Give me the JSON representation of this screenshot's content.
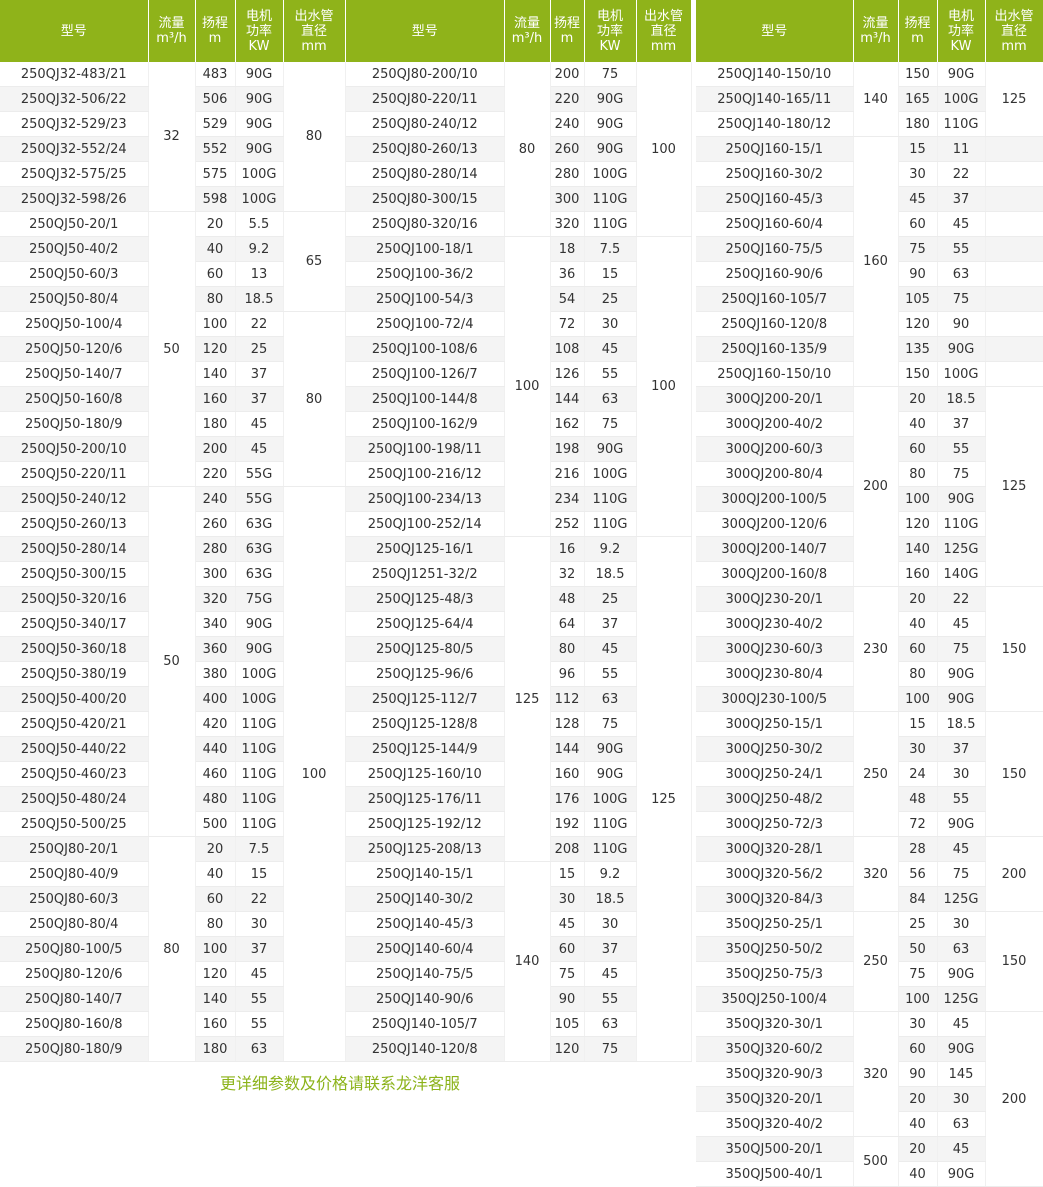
{
  "headers": [
    "型号",
    "流量\nm³/h",
    "扬程\nm",
    "电机\n功率\nKW",
    "出水管\n直径\nmm"
  ],
  "colors": {
    "header_bg": "#8fb31a",
    "header_text": "#ffffff",
    "footer_text": "#8cb31a",
    "stripe": "#f4f4f4"
  },
  "tables": [
    {
      "rows": [
        [
          "250QJ32-483/21",
          "483",
          "90G"
        ],
        [
          "250QJ32-506/22",
          "506",
          "90G"
        ],
        [
          "250QJ32-529/23",
          "529",
          "90G"
        ],
        [
          "250QJ32-552/24",
          "552",
          "90G"
        ],
        [
          "250QJ32-575/25",
          "575",
          "100G"
        ],
        [
          "250QJ32-598/26",
          "598",
          "100G"
        ],
        [
          "250QJ50-20/1",
          "20",
          "5.5"
        ],
        [
          "250QJ50-40/2",
          "40",
          "9.2"
        ],
        [
          "250QJ50-60/3",
          "60",
          "13"
        ],
        [
          "250QJ50-80/4",
          "80",
          "18.5"
        ],
        [
          "250QJ50-100/4",
          "100",
          "22"
        ],
        [
          "250QJ50-120/6",
          "120",
          "25"
        ],
        [
          "250QJ50-140/7",
          "140",
          "37"
        ],
        [
          "250QJ50-160/8",
          "160",
          "37"
        ],
        [
          "250QJ50-180/9",
          "180",
          "45"
        ],
        [
          "250QJ50-200/10",
          "200",
          "45"
        ],
        [
          "250QJ50-220/11",
          "220",
          "55G"
        ],
        [
          "250QJ50-240/12",
          "240",
          "55G"
        ],
        [
          "250QJ50-260/13",
          "260",
          "63G"
        ],
        [
          "250QJ50-280/14",
          "280",
          "63G"
        ],
        [
          "250QJ50-300/15",
          "300",
          "63G"
        ],
        [
          "250QJ50-320/16",
          "320",
          "75G"
        ],
        [
          "250QJ50-340/17",
          "340",
          "90G"
        ],
        [
          "250QJ50-360/18",
          "360",
          "90G"
        ],
        [
          "250QJ50-380/19",
          "380",
          "100G"
        ],
        [
          "250QJ50-400/20",
          "400",
          "100G"
        ],
        [
          "250QJ50-420/21",
          "420",
          "110G"
        ],
        [
          "250QJ50-440/22",
          "440",
          "110G"
        ],
        [
          "250QJ50-460/23",
          "460",
          "110G"
        ],
        [
          "250QJ50-480/24",
          "480",
          "110G"
        ],
        [
          "250QJ50-500/25",
          "500",
          "110G"
        ],
        [
          "250QJ80-20/1",
          "20",
          "7.5"
        ],
        [
          "250QJ80-40/9",
          "40",
          "15"
        ],
        [
          "250QJ80-60/3",
          "60",
          "22"
        ],
        [
          "250QJ80-80/4",
          "80",
          "30"
        ],
        [
          "250QJ80-100/5",
          "100",
          "37"
        ],
        [
          "250QJ80-120/6",
          "120",
          "45"
        ],
        [
          "250QJ80-140/7",
          "140",
          "55"
        ],
        [
          "250QJ80-160/8",
          "160",
          "55"
        ],
        [
          "250QJ80-180/9",
          "180",
          "63"
        ]
      ],
      "flow": [
        {
          "value": "32",
          "span": 6
        },
        {
          "value": "50",
          "span": 11
        },
        {
          "value": "50",
          "span": 14
        },
        {
          "value": "80",
          "span": 9
        }
      ],
      "outlet": [
        {
          "value": "80",
          "span": 6
        },
        {
          "value": "65",
          "span": 4
        },
        {
          "value": "80",
          "span": 7
        },
        {
          "value": "100",
          "span": 23
        }
      ]
    },
    {
      "rows": [
        [
          "250QJ80-200/10",
          "200",
          "75"
        ],
        [
          "250QJ80-220/11",
          "220",
          "90G"
        ],
        [
          "250QJ80-240/12",
          "240",
          "90G"
        ],
        [
          "250QJ80-260/13",
          "260",
          "90G"
        ],
        [
          "250QJ80-280/14",
          "280",
          "100G"
        ],
        [
          "250QJ80-300/15",
          "300",
          "110G"
        ],
        [
          "250QJ80-320/16",
          "320",
          "110G"
        ],
        [
          "250QJ100-18/1",
          "18",
          "7.5"
        ],
        [
          "250QJ100-36/2",
          "36",
          "15"
        ],
        [
          "250QJ100-54/3",
          "54",
          "25"
        ],
        [
          "250QJ100-72/4",
          "72",
          "30"
        ],
        [
          "250QJ100-108/6",
          "108",
          "45"
        ],
        [
          "250QJ100-126/7",
          "126",
          "55"
        ],
        [
          "250QJ100-144/8",
          "144",
          "63"
        ],
        [
          "250QJ100-162/9",
          "162",
          "75"
        ],
        [
          "250QJ100-198/11",
          "198",
          "90G"
        ],
        [
          "250QJ100-216/12",
          "216",
          "100G"
        ],
        [
          "250QJ100-234/13",
          "234",
          "110G"
        ],
        [
          "250QJ100-252/14",
          "252",
          "110G"
        ],
        [
          "250QJ125-16/1",
          "16",
          "9.2"
        ],
        [
          "250QJ1251-32/2",
          "32",
          "18.5"
        ],
        [
          "250QJ125-48/3",
          "48",
          "25"
        ],
        [
          "250QJ125-64/4",
          "64",
          "37"
        ],
        [
          "250QJ125-80/5",
          "80",
          "45"
        ],
        [
          "250QJ125-96/6",
          "96",
          "55"
        ],
        [
          "250QJ125-112/7",
          "112",
          "63"
        ],
        [
          "250QJ125-128/8",
          "128",
          "75"
        ],
        [
          "250QJ125-144/9",
          "144",
          "90G"
        ],
        [
          "250QJ125-160/10",
          "160",
          "90G"
        ],
        [
          "250QJ125-176/11",
          "176",
          "100G"
        ],
        [
          "250QJ125-192/12",
          "192",
          "110G"
        ],
        [
          "250QJ125-208/13",
          "208",
          "110G"
        ],
        [
          "250QJ140-15/1",
          "15",
          "9.2"
        ],
        [
          "250QJ140-30/2",
          "30",
          "18.5"
        ],
        [
          "250QJ140-45/3",
          "45",
          "30"
        ],
        [
          "250QJ140-60/4",
          "60",
          "37"
        ],
        [
          "250QJ140-75/5",
          "75",
          "45"
        ],
        [
          "250QJ140-90/6",
          "90",
          "55"
        ],
        [
          "250QJ140-105/7",
          "105",
          "63"
        ],
        [
          "250QJ140-120/8",
          "120",
          "75"
        ]
      ],
      "flow": [
        {
          "value": "80",
          "span": 7
        },
        {
          "value": "100",
          "span": 12
        },
        {
          "value": "125",
          "span": 13
        },
        {
          "value": "140",
          "span": 8
        }
      ],
      "outlet": [
        {
          "value": "100",
          "span": 7
        },
        {
          "value": "100",
          "span": 12
        },
        {
          "value": "125",
          "span": 21
        }
      ]
    },
    {
      "rows": [
        [
          "250QJ140-150/10",
          "150",
          "90G"
        ],
        [
          "250QJ140-165/11",
          "165",
          "100G"
        ],
        [
          "250QJ140-180/12",
          "180",
          "110G"
        ],
        [
          "250QJ160-15/1",
          "15",
          "11"
        ],
        [
          "250QJ160-30/2",
          "30",
          "22"
        ],
        [
          "250QJ160-45/3",
          "45",
          "37"
        ],
        [
          "250QJ160-60/4",
          "60",
          "45"
        ],
        [
          "250QJ160-75/5",
          "75",
          "55"
        ],
        [
          "250QJ160-90/6",
          "90",
          "63"
        ],
        [
          "250QJ160-105/7",
          "105",
          "75"
        ],
        [
          "250QJ160-120/8",
          "120",
          "90"
        ],
        [
          "250QJ160-135/9",
          "135",
          "90G"
        ],
        [
          "250QJ160-150/10",
          "150",
          "100G"
        ],
        [
          "300QJ200-20/1",
          "20",
          "18.5"
        ],
        [
          "300QJ200-40/2",
          "40",
          "37"
        ],
        [
          "300QJ200-60/3",
          "60",
          "55"
        ],
        [
          "300QJ200-80/4",
          "80",
          "75"
        ],
        [
          "300QJ200-100/5",
          "100",
          "90G"
        ],
        [
          "300QJ200-120/6",
          "120",
          "110G"
        ],
        [
          "300QJ200-140/7",
          "140",
          "125G"
        ],
        [
          "300QJ200-160/8",
          "160",
          "140G"
        ],
        [
          "300QJ230-20/1",
          "20",
          "22"
        ],
        [
          "300QJ230-40/2",
          "40",
          "45"
        ],
        [
          "300QJ230-60/3",
          "60",
          "75"
        ],
        [
          "300QJ230-80/4",
          "80",
          "90G"
        ],
        [
          "300QJ230-100/5",
          "100",
          "90G"
        ],
        [
          "300QJ250-15/1",
          "15",
          "18.5"
        ],
        [
          "300QJ250-30/2",
          "30",
          "37"
        ],
        [
          "300QJ250-24/1",
          "24",
          "30"
        ],
        [
          "300QJ250-48/2",
          "48",
          "55"
        ],
        [
          "300QJ250-72/3",
          "72",
          "90G"
        ],
        [
          "300QJ320-28/1",
          "28",
          "45"
        ],
        [
          "300QJ320-56/2",
          "56",
          "75"
        ],
        [
          "300QJ320-84/3",
          "84",
          "125G"
        ],
        [
          "350QJ250-25/1",
          "25",
          "30"
        ],
        [
          "350QJ250-50/2",
          "50",
          "63"
        ],
        [
          "350QJ250-75/3",
          "75",
          "90G"
        ],
        [
          "350QJ250-100/4",
          "100",
          "125G"
        ],
        [
          "350QJ320-30/1",
          "30",
          "45"
        ],
        [
          "350QJ320-60/2",
          "60",
          "90G"
        ],
        [
          "350QJ320-90/3",
          "90",
          "145"
        ],
        [
          "350QJ320-20/1",
          "20",
          "30"
        ],
        [
          "350QJ320-40/2",
          "40",
          "63"
        ],
        [
          "350QJ500-20/1",
          "20",
          "45"
        ],
        [
          "350QJ500-40/1",
          "40",
          "90G"
        ]
      ],
      "flow": [
        {
          "value": "140",
          "span": 3
        },
        {
          "value": "160",
          "span": 10
        },
        {
          "value": "200",
          "span": 8
        },
        {
          "value": "230",
          "span": 5
        },
        {
          "value": "250",
          "span": 5
        },
        {
          "value": "320",
          "span": 3
        },
        {
          "value": "250",
          "span": 4
        },
        {
          "value": "320",
          "span": 5
        },
        {
          "value": "500",
          "span": 2
        }
      ],
      "outlet": [
        {
          "value": "125",
          "span": 3
        },
        {
          "value": "",
          "span": 1
        },
        {
          "value": "",
          "span": 1
        },
        {
          "value": "",
          "span": 1
        },
        {
          "value": "",
          "span": 1
        },
        {
          "value": "",
          "span": 1
        },
        {
          "value": "",
          "span": 1
        },
        {
          "value": "",
          "span": 1
        },
        {
          "value": "",
          "span": 1
        },
        {
          "value": "",
          "span": 1
        },
        {
          "value": "",
          "span": 1
        },
        {
          "value": "125",
          "span": 8
        },
        {
          "value": "150",
          "span": 5
        },
        {
          "value": "150",
          "span": 5
        },
        {
          "value": "200",
          "span": 3
        },
        {
          "value": "150",
          "span": 4
        },
        {
          "value": "200",
          "span": 7
        }
      ]
    }
  ],
  "footer_note": "更详细参数及价格请联系龙洋客服"
}
